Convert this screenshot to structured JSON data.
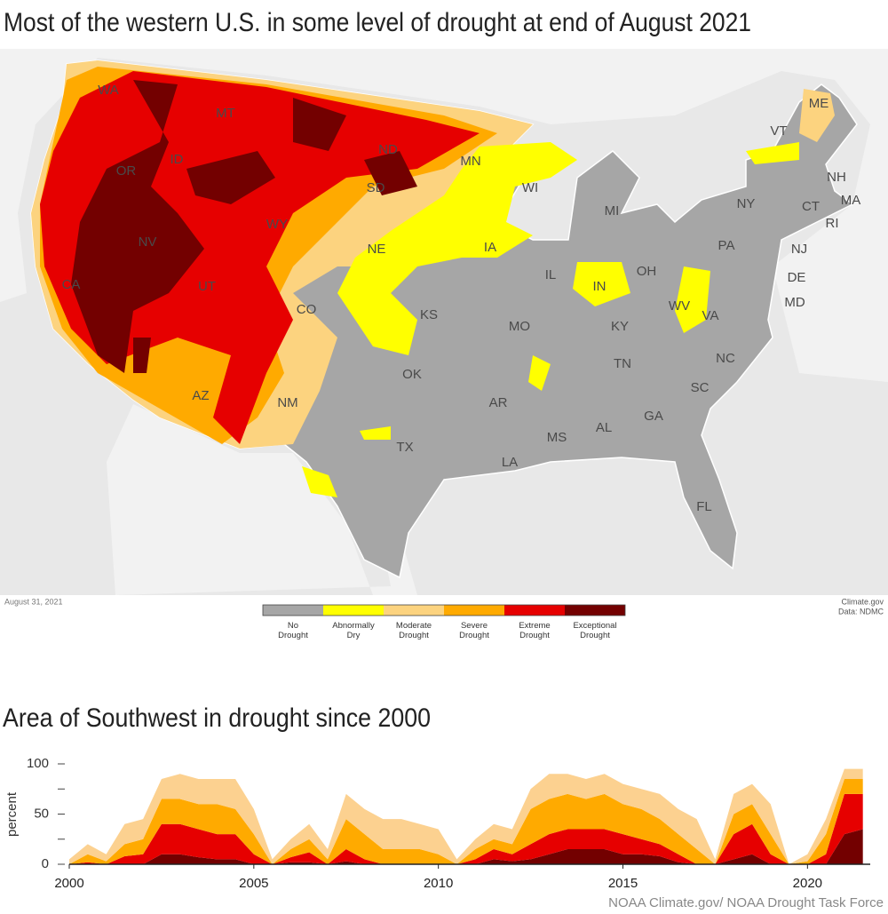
{
  "map": {
    "title": "Most of the western U.S. in some level of drought at end of August 2021",
    "date": "August 31, 2021",
    "credit": [
      "Climate.gov",
      "Data: NDMC"
    ],
    "legend": [
      {
        "label": "No Drought",
        "color": "#a6a6a6"
      },
      {
        "label": "Abnormally Dry",
        "color": "#ffff00"
      },
      {
        "label": "Moderate Drought",
        "color": "#fcd37f"
      },
      {
        "label": "Severe Drought",
        "color": "#ffaa00"
      },
      {
        "label": "Extreme Drought",
        "color": "#e60000"
      },
      {
        "label": "Exceptional Drought",
        "color": "#730000"
      }
    ],
    "state_labels": [
      "WA",
      "OR",
      "CA",
      "ID",
      "NV",
      "MT",
      "WY",
      "UT",
      "AZ",
      "CO",
      "NM",
      "ND",
      "SD",
      "NE",
      "KS",
      "OK",
      "TX",
      "MN",
      "IA",
      "MO",
      "AR",
      "LA",
      "WI",
      "IL",
      "MI",
      "IN",
      "OH",
      "KY",
      "TN",
      "MS",
      "AL",
      "GA",
      "FL",
      "SC",
      "NC",
      "VA",
      "WV",
      "PA",
      "NY",
      "VT",
      "ME",
      "NH",
      "MA",
      "RI",
      "CT",
      "NJ",
      "DE",
      "MD"
    ]
  },
  "chart_data": {
    "type": "area",
    "title": "Area of Southwest in drought since 2000",
    "ylabel": "percent",
    "source": "NOAA Climate.gov/ NOAA Drought Task Force",
    "x": [
      2000,
      2000.5,
      2001,
      2001.5,
      2002,
      2002.5,
      2003,
      2003.5,
      2004,
      2004.5,
      2005,
      2005.5,
      2006,
      2006.5,
      2007,
      2007.5,
      2008,
      2008.5,
      2009,
      2009.5,
      2010,
      2010.5,
      2011,
      2011.5,
      2012,
      2012.5,
      2013,
      2013.5,
      2014,
      2014.5,
      2015,
      2015.5,
      2016,
      2016.5,
      2017,
      2017.5,
      2018,
      2018.5,
      2019,
      2019.5,
      2020,
      2020.5,
      2021,
      2021.5
    ],
    "stacked": true,
    "series": [
      {
        "color": "#730000",
        "values": [
          0,
          0,
          0,
          0,
          0,
          10,
          10,
          7,
          5,
          5,
          0,
          0,
          2,
          2,
          0,
          3,
          0,
          0,
          0,
          0,
          0,
          0,
          0,
          5,
          3,
          5,
          10,
          15,
          15,
          15,
          10,
          10,
          8,
          2,
          0,
          0,
          5,
          10,
          0,
          0,
          0,
          0,
          30,
          35
        ]
      },
      {
        "color": "#e60000",
        "values": [
          0,
          2,
          0,
          8,
          10,
          30,
          30,
          28,
          25,
          25,
          10,
          0,
          5,
          10,
          0,
          12,
          5,
          0,
          0,
          0,
          0,
          0,
          5,
          10,
          7,
          15,
          20,
          20,
          20,
          20,
          20,
          15,
          12,
          8,
          0,
          0,
          25,
          30,
          10,
          0,
          0,
          10,
          40,
          35
        ]
      },
      {
        "color": "#ffaa00",
        "values": [
          0,
          8,
          3,
          12,
          15,
          25,
          25,
          25,
          30,
          25,
          20,
          0,
          8,
          13,
          5,
          30,
          25,
          15,
          15,
          15,
          10,
          0,
          10,
          10,
          10,
          35,
          35,
          35,
          30,
          35,
          30,
          30,
          25,
          20,
          15,
          0,
          20,
          20,
          20,
          0,
          3,
          20,
          15,
          15
        ]
      },
      {
        "color": "#fcd190",
        "values": [
          5,
          10,
          7,
          20,
          20,
          20,
          25,
          25,
          25,
          30,
          25,
          5,
          10,
          15,
          10,
          25,
          25,
          30,
          30,
          25,
          25,
          5,
          10,
          15,
          15,
          20,
          25,
          20,
          20,
          20,
          20,
          20,
          25,
          25,
          30,
          5,
          20,
          20,
          30,
          0,
          7,
          15,
          10,
          10
        ]
      }
    ],
    "xlim": [
      2000,
      2021.7
    ],
    "ylim": [
      0,
      100
    ],
    "xticks": [
      2000,
      2005,
      2010,
      2015,
      2020
    ],
    "yticks": [
      0,
      50,
      100
    ],
    "yminorticks": [
      25,
      75
    ]
  }
}
